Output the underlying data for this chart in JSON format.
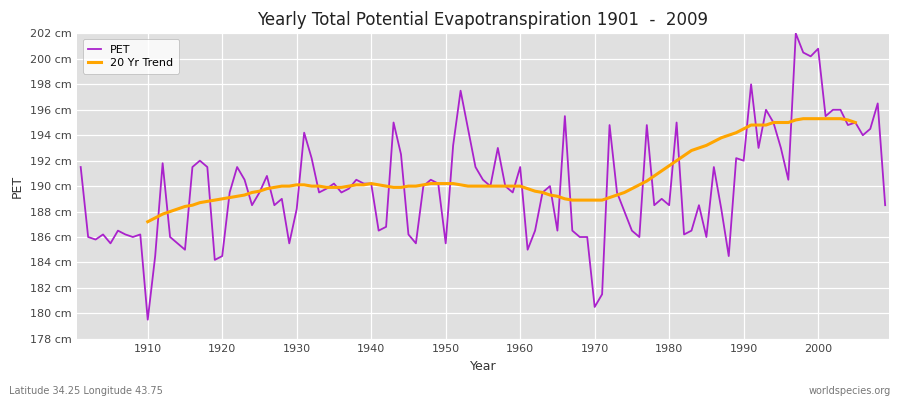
{
  "title": "Yearly Total Potential Evapotranspiration 1901  -  2009",
  "xlabel": "Year",
  "ylabel": "PET",
  "subtitle_left": "Latitude 34.25 Longitude 43.75",
  "subtitle_right": "worldspecies.org",
  "pet_color": "#aa22cc",
  "trend_color": "#FFA500",
  "fig_bg_color": "#ffffff",
  "plot_bg_color": "#e0e0e0",
  "grid_color": "#ffffff",
  "ylim": [
    178,
    202
  ],
  "ytick_step": 2,
  "years": [
    1901,
    1902,
    1903,
    1904,
    1905,
    1906,
    1907,
    1908,
    1909,
    1910,
    1911,
    1912,
    1913,
    1914,
    1915,
    1916,
    1917,
    1918,
    1919,
    1920,
    1921,
    1922,
    1923,
    1924,
    1925,
    1926,
    1927,
    1928,
    1929,
    1930,
    1931,
    1932,
    1933,
    1934,
    1935,
    1936,
    1937,
    1938,
    1939,
    1940,
    1941,
    1942,
    1943,
    1944,
    1945,
    1946,
    1947,
    1948,
    1949,
    1950,
    1951,
    1952,
    1953,
    1954,
    1955,
    1956,
    1957,
    1958,
    1959,
    1960,
    1961,
    1962,
    1963,
    1964,
    1965,
    1966,
    1967,
    1968,
    1969,
    1970,
    1971,
    1972,
    1973,
    1974,
    1975,
    1976,
    1977,
    1978,
    1979,
    1980,
    1981,
    1982,
    1983,
    1984,
    1985,
    1986,
    1987,
    1988,
    1989,
    1990,
    1991,
    1992,
    1993,
    1994,
    1995,
    1996,
    1997,
    1998,
    1999,
    2000,
    2001,
    2002,
    2003,
    2004,
    2005,
    2006,
    2007,
    2008,
    2009
  ],
  "pet_values": [
    191.5,
    186.0,
    185.8,
    186.2,
    185.5,
    186.5,
    186.2,
    186.0,
    186.2,
    179.5,
    184.5,
    191.8,
    186.0,
    185.5,
    185.0,
    191.5,
    192.0,
    191.5,
    184.2,
    184.5,
    189.5,
    191.5,
    190.5,
    188.5,
    189.5,
    190.8,
    188.5,
    189.0,
    185.5,
    188.2,
    194.2,
    192.2,
    189.5,
    189.8,
    190.2,
    189.5,
    189.8,
    190.5,
    190.2,
    190.2,
    186.5,
    186.8,
    195.0,
    192.5,
    186.2,
    185.5,
    190.0,
    190.5,
    190.2,
    185.5,
    193.2,
    197.5,
    194.5,
    191.5,
    190.5,
    190.0,
    193.0,
    190.0,
    189.5,
    191.5,
    185.0,
    186.5,
    189.5,
    190.0,
    186.5,
    195.5,
    186.5,
    186.0,
    186.0,
    180.5,
    181.5,
    194.8,
    189.5,
    188.0,
    186.5,
    186.0,
    194.8,
    188.5,
    189.0,
    188.5,
    195.0,
    186.2,
    186.5,
    188.5,
    186.0,
    191.5,
    188.2,
    184.5,
    192.2,
    192.0,
    198.0,
    193.0,
    196.0,
    195.0,
    193.0,
    190.5,
    202.0,
    200.5,
    200.2,
    200.8,
    195.5,
    196.0,
    196.0,
    194.8,
    195.0,
    194.0,
    194.5,
    196.5,
    188.5
  ],
  "trend_years": [
    1910,
    1911,
    1912,
    1913,
    1914,
    1915,
    1916,
    1917,
    1918,
    1919,
    1920,
    1921,
    1922,
    1923,
    1924,
    1925,
    1926,
    1927,
    1928,
    1929,
    1930,
    1931,
    1932,
    1933,
    1934,
    1935,
    1936,
    1937,
    1938,
    1939,
    1940,
    1941,
    1942,
    1943,
    1944,
    1945,
    1946,
    1947,
    1948,
    1949,
    1950,
    1951,
    1952,
    1953,
    1954,
    1955,
    1956,
    1957,
    1958,
    1959,
    1960,
    1961,
    1962,
    1963,
    1964,
    1965,
    1966,
    1967,
    1968,
    1969,
    1970,
    1971,
    1972,
    1973,
    1974,
    1975,
    1976,
    1977,
    1978,
    1979,
    1980,
    1981,
    1982,
    1983,
    1984,
    1985,
    1986,
    1987,
    1988,
    1989,
    1990,
    1991,
    1992,
    1993,
    1994,
    1995,
    1996,
    1997,
    1998,
    1999,
    2000,
    2001,
    2002,
    2003,
    2004,
    2005
  ],
  "trend_values": [
    187.2,
    187.5,
    187.8,
    188.0,
    188.2,
    188.4,
    188.5,
    188.7,
    188.8,
    188.9,
    189.0,
    189.1,
    189.2,
    189.3,
    189.5,
    189.6,
    189.8,
    189.9,
    190.0,
    190.0,
    190.1,
    190.1,
    190.0,
    190.0,
    189.9,
    189.9,
    189.9,
    190.0,
    190.1,
    190.1,
    190.2,
    190.1,
    190.0,
    189.9,
    189.9,
    190.0,
    190.0,
    190.1,
    190.2,
    190.2,
    190.2,
    190.2,
    190.1,
    190.0,
    190.0,
    190.0,
    190.0,
    190.0,
    190.0,
    190.0,
    190.0,
    189.8,
    189.6,
    189.5,
    189.3,
    189.2,
    189.0,
    188.9,
    188.9,
    188.9,
    188.9,
    188.9,
    189.1,
    189.3,
    189.5,
    189.8,
    190.1,
    190.4,
    190.8,
    191.2,
    191.6,
    192.0,
    192.4,
    192.8,
    193.0,
    193.2,
    193.5,
    193.8,
    194.0,
    194.2,
    194.5,
    194.8,
    194.8,
    194.8,
    195.0,
    195.0,
    195.0,
    195.2,
    195.3,
    195.3,
    195.3,
    195.3,
    195.3,
    195.3,
    195.2,
    195.0
  ]
}
